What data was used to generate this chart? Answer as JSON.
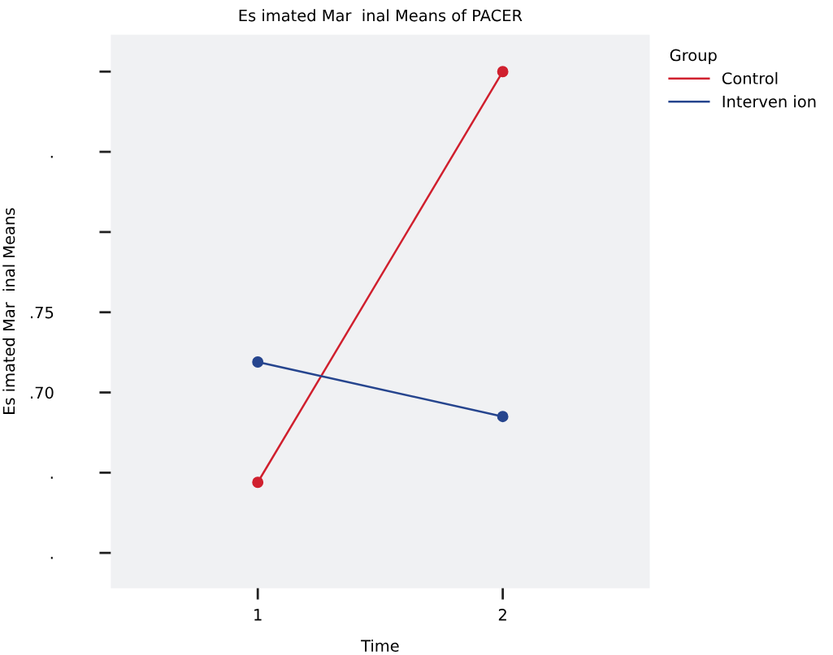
{
  "chart_data": {
    "type": "line",
    "title": "Es imated Mar  inal Means of PACER",
    "xlabel": "Time",
    "ylabel": "Es imated Mar  inal Means",
    "legend_title": "Group",
    "x": [
      1,
      2
    ],
    "series": [
      {
        "name": "Control",
        "color": "#d0202e",
        "values": [
          0.644,
          0.9
        ]
      },
      {
        "name": "Interven ion",
        "color": "#26458e",
        "values": [
          0.719,
          0.685
        ]
      }
    ],
    "xlim": [
      0.4,
      2.6
    ],
    "xticks": [
      1,
      2
    ],
    "ylim": [
      0.578,
      0.923
    ],
    "yticks": [
      {
        "value": 0.6,
        "label": "."
      },
      {
        "value": 0.65,
        "label": "."
      },
      {
        "value": 0.7,
        "label": ".70"
      },
      {
        "value": 0.75,
        "label": ".75"
      },
      {
        "value": 0.8,
        "label": null
      },
      {
        "value": 0.85,
        "label": "."
      },
      {
        "value": 0.9,
        "label": null
      }
    ],
    "marker": "circle",
    "line_style": "solid",
    "legend": "top right",
    "grid": false
  }
}
